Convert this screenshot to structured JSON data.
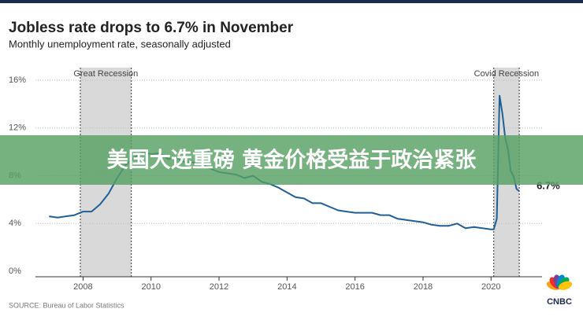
{
  "chart_data": {
    "type": "line",
    "title": "Jobless rate drops to 6.7% in November",
    "subtitle": "Monthly unemployment rate, seasonally adjusted",
    "x": [
      2007.0,
      2007.25,
      2007.5,
      2007.75,
      2008.0,
      2008.25,
      2008.5,
      2008.75,
      2009.0,
      2009.25,
      2009.5,
      2009.75,
      2010.0,
      2010.25,
      2010.5,
      2010.75,
      2011.0,
      2011.25,
      2011.5,
      2011.75,
      2012.0,
      2012.25,
      2012.5,
      2012.75,
      2013.0,
      2013.25,
      2013.5,
      2013.75,
      2014.0,
      2014.25,
      2014.5,
      2014.75,
      2015.0,
      2015.25,
      2015.5,
      2015.75,
      2016.0,
      2016.25,
      2016.5,
      2016.75,
      2017.0,
      2017.25,
      2017.5,
      2017.75,
      2018.0,
      2018.25,
      2018.5,
      2018.75,
      2019.0,
      2019.25,
      2019.5,
      2019.75,
      2020.0,
      2020.08,
      2020.17,
      2020.25,
      2020.33,
      2020.42,
      2020.5,
      2020.58,
      2020.67,
      2020.75,
      2020.83
    ],
    "series": [
      {
        "name": "Unemployment rate",
        "color": "#1f5f96",
        "values": [
          4.6,
          4.5,
          4.6,
          4.7,
          5.0,
          5.0,
          5.6,
          6.5,
          7.8,
          8.9,
          9.5,
          10.0,
          9.8,
          9.9,
          9.4,
          9.5,
          9.1,
          9.1,
          9.0,
          8.6,
          8.3,
          8.2,
          8.1,
          7.8,
          8.0,
          7.5,
          7.3,
          7.0,
          6.6,
          6.2,
          6.1,
          5.7,
          5.7,
          5.4,
          5.1,
          5.0,
          4.9,
          4.9,
          4.9,
          4.7,
          4.7,
          4.4,
          4.3,
          4.2,
          4.1,
          3.9,
          3.8,
          3.8,
          4.0,
          3.6,
          3.7,
          3.6,
          3.5,
          3.5,
          4.4,
          14.7,
          13.3,
          11.1,
          10.2,
          8.4,
          7.9,
          6.9,
          6.7
        ]
      }
    ],
    "xlim": [
      2006.6,
      2021.5
    ],
    "xticks": [
      2008,
      2010,
      2012,
      2014,
      2016,
      2018,
      2020
    ],
    "ylim": [
      0,
      16
    ],
    "yticks": [
      {
        "value": 0,
        "label": "0%"
      },
      {
        "value": 4,
        "label": "4%"
      },
      {
        "value": 8,
        "label": "8%"
      },
      {
        "value": 12,
        "label": "12%"
      },
      {
        "value": 16,
        "label": "16%"
      }
    ],
    "grid": true,
    "recessions": [
      {
        "label": "Great Recession",
        "start": 2007.92,
        "end": 2009.42
      },
      {
        "label": "Covid Recession",
        "start": 2020.08,
        "end": 2020.83
      }
    ],
    "end_label": "6.7%",
    "source": "SOURCE: Bureau of Labor Statistics"
  },
  "banner": "美国大选重磅 黄金价格受益于政治紧张",
  "logo": "CNBC"
}
